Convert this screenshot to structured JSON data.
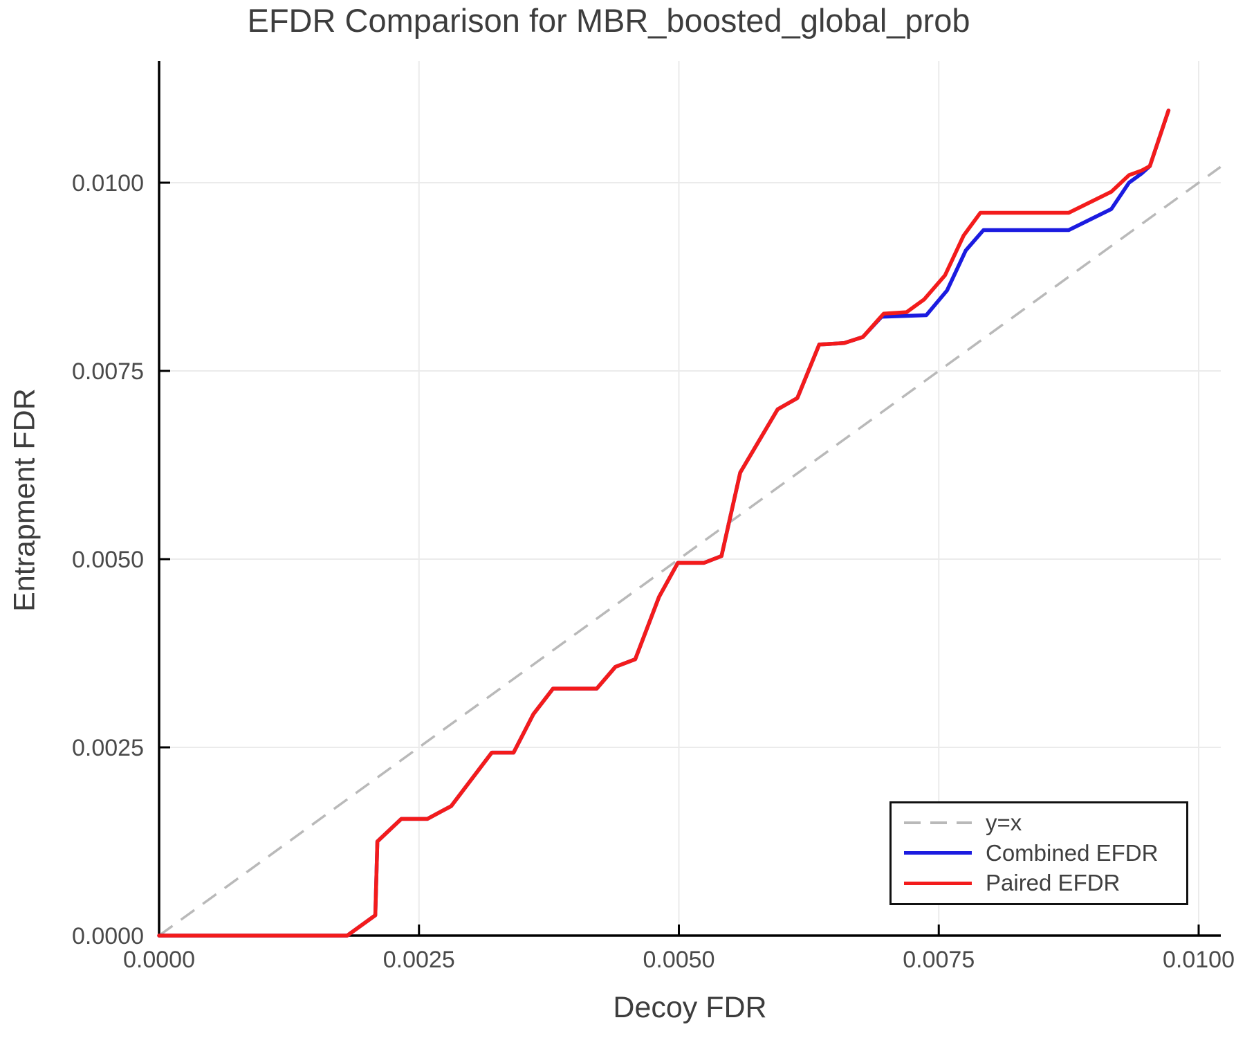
{
  "title": "EFDR Comparison for MBR_boosted_global_prob",
  "axes": {
    "x": {
      "label": "Decoy FDR",
      "tick_values": [
        0.0,
        0.0025,
        0.005,
        0.0075,
        0.01
      ],
      "tick_labels": [
        "0.0000",
        "0.0025",
        "0.0050",
        "0.0075",
        "0.0100"
      ]
    },
    "y": {
      "label": "Entrapment FDR",
      "tick_values": [
        0.0,
        0.0025,
        0.005,
        0.0075,
        0.01
      ],
      "tick_labels": [
        "0.0000",
        "0.0025",
        "0.0050",
        "0.0075",
        "0.0100"
      ]
    }
  },
  "colors": {
    "paired": "#f31b1b",
    "combined": "#1b1be0",
    "identity": "#b9b9b9",
    "grid": "#ebebeb",
    "spine": "#000000",
    "tick_text": "#4a4a4a"
  },
  "legend": {
    "entries": [
      {
        "label": "y=x",
        "style": "dashed",
        "color_key": "identity"
      },
      {
        "label": "Combined EFDR",
        "style": "solid",
        "color_key": "combined"
      },
      {
        "label": "Paired EFDR",
        "style": "solid",
        "color_key": "paired"
      }
    ]
  },
  "chart_data": {
    "type": "line",
    "title": "EFDR Comparison for MBR_boosted_global_prob",
    "xlabel": "Decoy FDR",
    "ylabel": "Entrapment FDR",
    "xlim": [
      0.0,
      0.01021
    ],
    "ylim": [
      0.0,
      0.01162
    ],
    "grid": true,
    "legend_position": "lower right",
    "identity_line": {
      "name": "y=x",
      "points": [
        [
          0.0,
          0.0
        ],
        [
          0.01021,
          0.01021
        ]
      ]
    },
    "series": [
      {
        "name": "Combined EFDR",
        "color_key": "combined",
        "points": [
          [
            0.0,
            0.0
          ],
          [
            0.00181,
            0.0
          ],
          [
            0.00208,
            0.00027
          ],
          [
            0.0021,
            0.00125
          ],
          [
            0.00233,
            0.00155
          ],
          [
            0.00258,
            0.00155
          ],
          [
            0.00281,
            0.00172
          ],
          [
            0.0032,
            0.00243
          ],
          [
            0.00341,
            0.00243
          ],
          [
            0.0036,
            0.00294
          ],
          [
            0.00379,
            0.00328
          ],
          [
            0.00421,
            0.00328
          ],
          [
            0.00439,
            0.00357
          ],
          [
            0.00458,
            0.00367
          ],
          [
            0.00481,
            0.0045
          ],
          [
            0.00499,
            0.00495
          ],
          [
            0.00524,
            0.00495
          ],
          [
            0.00541,
            0.00504
          ],
          [
            0.00559,
            0.00615
          ],
          [
            0.00595,
            0.00699
          ],
          [
            0.00614,
            0.00714
          ],
          [
            0.00635,
            0.00785
          ],
          [
            0.00659,
            0.00787
          ],
          [
            0.00677,
            0.00795
          ],
          [
            0.00695,
            0.00822
          ],
          [
            0.00738,
            0.00824
          ],
          [
            0.00758,
            0.00857
          ],
          [
            0.00776,
            0.0091
          ],
          [
            0.00793,
            0.00937
          ],
          [
            0.00875,
            0.00937
          ],
          [
            0.00916,
            0.00965
          ],
          [
            0.00933,
            0.01
          ],
          [
            0.00945,
            0.01012
          ],
          [
            0.00953,
            0.01022
          ],
          [
            0.00971,
            0.01096
          ]
        ]
      },
      {
        "name": "Paired EFDR",
        "color_key": "paired",
        "points": [
          [
            0.0,
            0.0
          ],
          [
            0.00181,
            0.0
          ],
          [
            0.00208,
            0.00027
          ],
          [
            0.0021,
            0.00125
          ],
          [
            0.00233,
            0.00155
          ],
          [
            0.00258,
            0.00155
          ],
          [
            0.00281,
            0.00172
          ],
          [
            0.0032,
            0.00243
          ],
          [
            0.00341,
            0.00243
          ],
          [
            0.0036,
            0.00294
          ],
          [
            0.00379,
            0.00328
          ],
          [
            0.00421,
            0.00328
          ],
          [
            0.00439,
            0.00357
          ],
          [
            0.00458,
            0.00367
          ],
          [
            0.00481,
            0.0045
          ],
          [
            0.00499,
            0.00495
          ],
          [
            0.00524,
            0.00495
          ],
          [
            0.00541,
            0.00504
          ],
          [
            0.00559,
            0.00615
          ],
          [
            0.00595,
            0.00699
          ],
          [
            0.00614,
            0.00714
          ],
          [
            0.00635,
            0.00785
          ],
          [
            0.00659,
            0.00787
          ],
          [
            0.00677,
            0.00795
          ],
          [
            0.00697,
            0.00826
          ],
          [
            0.00719,
            0.00828
          ],
          [
            0.00736,
            0.00845
          ],
          [
            0.00756,
            0.00877
          ],
          [
            0.00774,
            0.0093
          ],
          [
            0.0079,
            0.0096
          ],
          [
            0.00875,
            0.0096
          ],
          [
            0.00916,
            0.00988
          ],
          [
            0.00933,
            0.0101
          ],
          [
            0.00945,
            0.01016
          ],
          [
            0.00953,
            0.01022
          ],
          [
            0.00971,
            0.01096
          ]
        ]
      }
    ]
  }
}
